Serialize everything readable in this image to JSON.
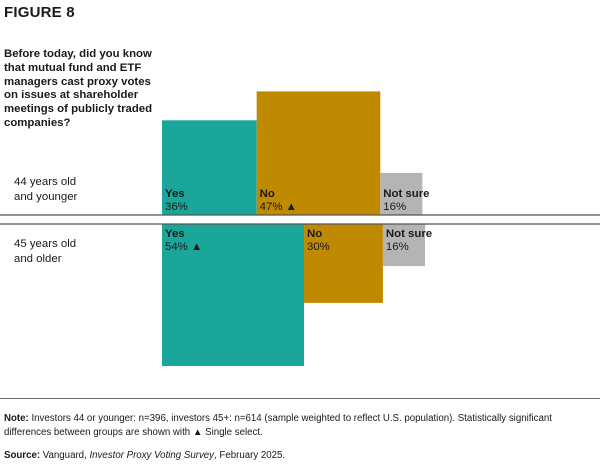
{
  "figure_label": "FIGURE 8",
  "question": "Before today, did you know that mutual fund and ETF managers cast proxy votes on issues at shareholder meetings of publicly traded companies?",
  "note": {
    "label": "Note:",
    "text": "Investors 44 or younger: n=396, investors 45+: n=614 (sample weighted to reflect U.S. population). Statistically significant differences between groups are shown with ▲ Single select."
  },
  "source": {
    "label": "Source:",
    "prefix": "Vanguard, ",
    "title": "Investor Proxy Voting Survey",
    "suffix": ", February 2025."
  },
  "chart_data": {
    "type": "bar",
    "categories": [
      "44 years old\nand younger",
      "45 years old\nand older"
    ],
    "series": [
      {
        "name": "Yes",
        "values": [
          36,
          54
        ],
        "significant": [
          false,
          true
        ],
        "color": "#1aa69a"
      },
      {
        "name": "No",
        "values": [
          47,
          30
        ],
        "significant": [
          true,
          false
        ],
        "color": "#c08a00"
      },
      {
        "name": "Not sure",
        "values": [
          16,
          16
        ],
        "significant": [
          false,
          false
        ],
        "color": "#b4b4b4"
      }
    ],
    "value_format": "{v}%",
    "significance_marker": "▲"
  }
}
